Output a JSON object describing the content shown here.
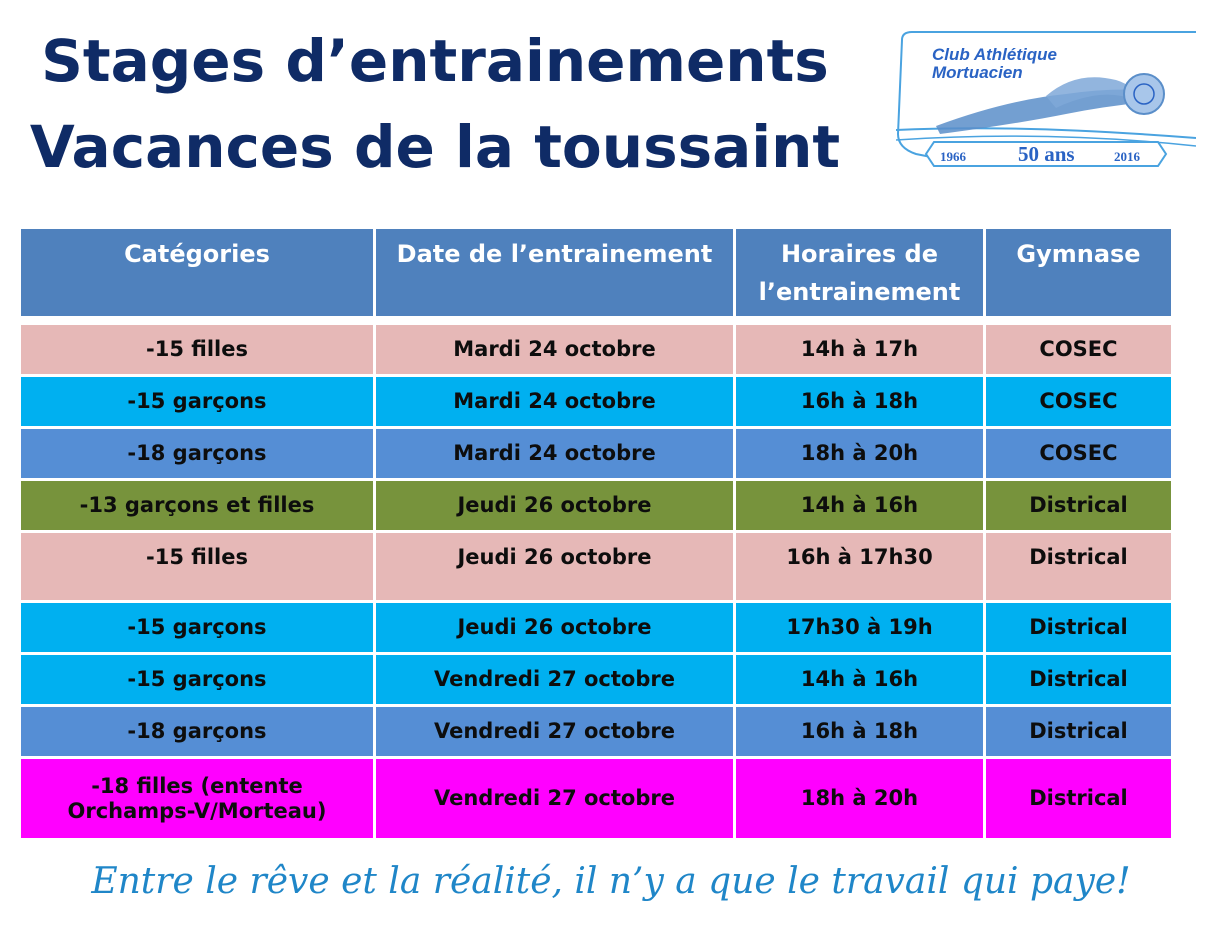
{
  "title": {
    "line1": "Stages d’entrainements",
    "line2": "Vacances de la toussaint"
  },
  "logo": {
    "line1": "Club Athlétique",
    "line2": "Mortuacien",
    "year_start": "1966",
    "anniversary": "50 ans",
    "year_end": "2016",
    "color": "#2a63c4"
  },
  "table": {
    "headers": {
      "category": "Catégories",
      "date": "Date de l’entrainement",
      "hours": "Horaires de l’entrainement",
      "gym": "Gymnase"
    },
    "header_color": "#4f81bd",
    "rows": [
      {
        "category": "-15 filles",
        "date": "Mardi 24 octobre",
        "hours": "14h à 17h",
        "gym": "COSEC",
        "color": "#e6b8b7"
      },
      {
        "category": "-15 garçons",
        "date": "Mardi 24 octobre",
        "hours": "16h à  18h",
        "gym": "COSEC",
        "color": "#00b0f0"
      },
      {
        "category": "-18 garçons",
        "date": "Mardi 24 octobre",
        "hours": "18h à 20h",
        "gym": "COSEC",
        "color": "#558ed5"
      },
      {
        "category": "-13 garçons et filles",
        "date": "Jeudi 26 octobre",
        "hours": "14h à 16h",
        "gym": "Districal",
        "color": "#77933c"
      },
      {
        "category": "-15 filles",
        "date": "Jeudi 26 octobre",
        "hours": "16h à 17h30",
        "gym": "Districal",
        "color": "#e6b8b7"
      },
      {
        "category": "-15 garçons",
        "date": "Jeudi 26 octobre",
        "hours": "17h30 à 19h",
        "gym": "Districal",
        "color": "#00b0f0"
      },
      {
        "category": "-15 garçons",
        "date": "Vendredi 27 octobre",
        "hours": "14h à 16h",
        "gym": "Districal",
        "color": "#00b0f0"
      },
      {
        "category": "-18 garçons",
        "date": "Vendredi 27 octobre",
        "hours": "16h à 18h",
        "gym": "Districal",
        "color": "#558ed5"
      },
      {
        "category": "-18 filles (entente Orchamps-V/Morteau)",
        "date": "Vendredi 27 octobre",
        "hours": "18h à 20h",
        "gym": "Districal",
        "color": "#ff00ff"
      }
    ]
  },
  "motto": "Entre le rêve et la réalité, il n’y a que le travail qui paye!"
}
